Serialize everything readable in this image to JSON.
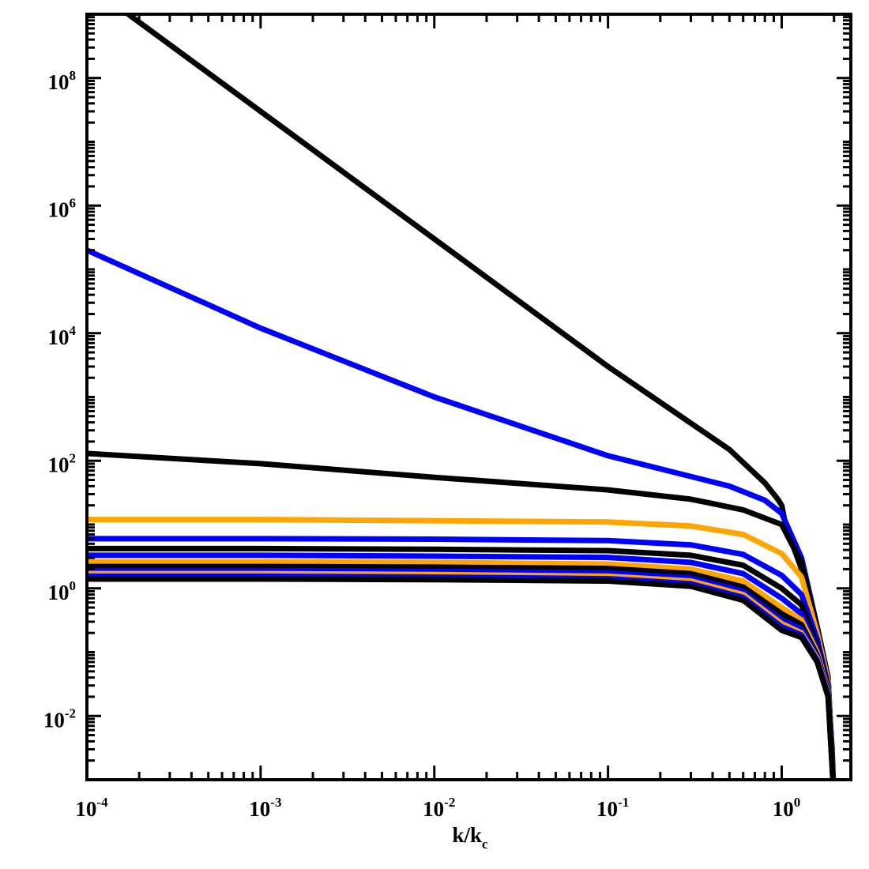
{
  "chart_data": {
    "type": "line",
    "title": "",
    "xlabel": {
      "base": "k/k",
      "subscript": "c"
    },
    "ylabel": "",
    "x_scale": "log",
    "y_scale": "log",
    "xlim": [
      0.0001,
      2.5
    ],
    "ylim": [
      0.001,
      1000000000
    ],
    "grid": false,
    "legend": "none",
    "x_ticks": [
      {
        "value": 0.0001,
        "base": "10",
        "exp": "-4"
      },
      {
        "value": 0.001,
        "base": "10",
        "exp": "-3"
      },
      {
        "value": 0.01,
        "base": "10",
        "exp": "-2"
      },
      {
        "value": 0.1,
        "base": "10",
        "exp": "-1"
      },
      {
        "value": 1,
        "base": "10",
        "exp": "0"
      }
    ],
    "y_ticks": [
      {
        "value": 0.01,
        "base": "10",
        "exp": "-2"
      },
      {
        "value": 1,
        "base": "10",
        "exp": "0"
      },
      {
        "value": 100,
        "base": "10",
        "exp": "2"
      },
      {
        "value": 10000,
        "base": "10",
        "exp": "4"
      },
      {
        "value": 1000000,
        "base": "10",
        "exp": "6"
      },
      {
        "value": 100000000,
        "base": "10",
        "exp": "8"
      }
    ],
    "series": [
      {
        "color": "#000000",
        "x": [
          0.0001,
          0.001,
          0.01,
          0.1,
          0.5,
          0.8,
          0.95,
          1.0,
          1.05,
          1.3,
          1.6,
          1.85,
          1.95,
          2.0
        ],
        "y": [
          3000000000,
          30000000,
          300000,
          3000,
          150,
          45,
          25,
          20,
          10,
          2,
          0.2,
          0.03,
          0.003,
          0.0005
        ]
      },
      {
        "color": "#0000ff",
        "x": [
          0.0001,
          0.001,
          0.01,
          0.1,
          0.5,
          0.8,
          1.0,
          1.3,
          1.6,
          1.85,
          2.0
        ],
        "y": [
          200000,
          12000,
          1000,
          120,
          40,
          24,
          15,
          3,
          0.25,
          0.04,
          0.0005
        ]
      },
      {
        "color": "#000000",
        "x": [
          0.0001,
          0.001,
          0.01,
          0.1,
          0.3,
          0.6,
          1.0,
          1.3,
          1.6,
          1.85,
          2.0
        ],
        "y": [
          130,
          90,
          55,
          35,
          25,
          17,
          10,
          2.5,
          0.25,
          0.04,
          0.0005
        ]
      },
      {
        "color": "#ffa500",
        "x": [
          0.0001,
          0.001,
          0.01,
          0.1,
          0.3,
          0.6,
          1.0,
          1.3,
          1.6,
          1.85,
          2.0
        ],
        "y": [
          12,
          12,
          11.5,
          11,
          9.5,
          7,
          3.5,
          1.5,
          0.2,
          0.035,
          0.0005
        ]
      },
      {
        "color": "#0000ff",
        "x": [
          0.0001,
          0.001,
          0.01,
          0.1,
          0.3,
          0.6,
          1.0,
          1.3,
          1.6,
          1.85,
          2.0
        ],
        "y": [
          6,
          6,
          5.9,
          5.6,
          4.8,
          3.4,
          1.6,
          0.8,
          0.16,
          0.03,
          0.0005
        ]
      },
      {
        "color": "#000000",
        "x": [
          0.0001,
          0.001,
          0.01,
          0.1,
          0.3,
          0.6,
          1.0,
          1.3,
          1.6,
          1.85,
          2.0
        ],
        "y": [
          4.2,
          4.2,
          4.1,
          3.9,
          3.3,
          2.3,
          1.0,
          0.55,
          0.13,
          0.028,
          0.0005
        ]
      },
      {
        "color": "#0000ff",
        "x": [
          0.0001,
          0.001,
          0.01,
          0.1,
          0.3,
          0.6,
          1.0,
          1.3,
          1.6,
          1.85,
          2.0
        ],
        "y": [
          3.3,
          3.3,
          3.2,
          3.05,
          2.55,
          1.7,
          0.7,
          0.4,
          0.11,
          0.026,
          0.0005
        ]
      },
      {
        "color": "#ffa500",
        "x": [
          0.0001,
          0.001,
          0.01,
          0.1,
          0.3,
          0.6,
          1.0,
          1.3,
          1.6,
          1.85,
          2.0
        ],
        "y": [
          2.6,
          2.6,
          2.55,
          2.4,
          2.0,
          1.3,
          0.5,
          0.32,
          0.1,
          0.025,
          0.0005
        ]
      },
      {
        "color": "#000000",
        "x": [
          0.0001,
          0.001,
          0.01,
          0.1,
          0.3,
          0.6,
          1.0,
          1.3,
          1.6,
          1.85,
          2.0
        ],
        "y": [
          2.2,
          2.2,
          2.15,
          2.05,
          1.7,
          1.05,
          0.4,
          0.27,
          0.09,
          0.024,
          0.0005
        ]
      },
      {
        "color": "#0000ff",
        "x": [
          0.0001,
          0.001,
          0.01,
          0.1,
          0.3,
          0.6,
          1.0,
          1.3,
          1.6,
          1.85,
          2.0
        ],
        "y": [
          1.9,
          1.9,
          1.85,
          1.75,
          1.45,
          0.9,
          0.32,
          0.23,
          0.085,
          0.023,
          0.0005
        ]
      },
      {
        "color": "#ffa500",
        "x": [
          0.0001,
          0.001,
          0.01,
          0.1,
          0.3,
          0.6,
          1.0,
          1.3,
          1.6,
          1.85,
          2.0
        ],
        "y": [
          1.7,
          1.7,
          1.65,
          1.55,
          1.3,
          0.8,
          0.28,
          0.2,
          0.08,
          0.022,
          0.0005
        ]
      },
      {
        "color": "#0000ff",
        "x": [
          0.0001,
          0.001,
          0.01,
          0.1,
          0.3,
          0.6,
          1.0,
          1.3,
          1.6,
          1.85,
          2.0
        ],
        "y": [
          1.55,
          1.55,
          1.5,
          1.42,
          1.18,
          0.72,
          0.25,
          0.185,
          0.075,
          0.021,
          0.0005
        ]
      },
      {
        "color": "#000000",
        "x": [
          0.0001,
          0.001,
          0.01,
          0.1,
          0.3,
          0.6,
          1.0,
          1.3,
          1.6,
          1.85,
          2.0
        ],
        "y": [
          1.4,
          1.4,
          1.37,
          1.3,
          1.08,
          0.65,
          0.22,
          0.17,
          0.07,
          0.02,
          0.0005
        ]
      }
    ]
  }
}
